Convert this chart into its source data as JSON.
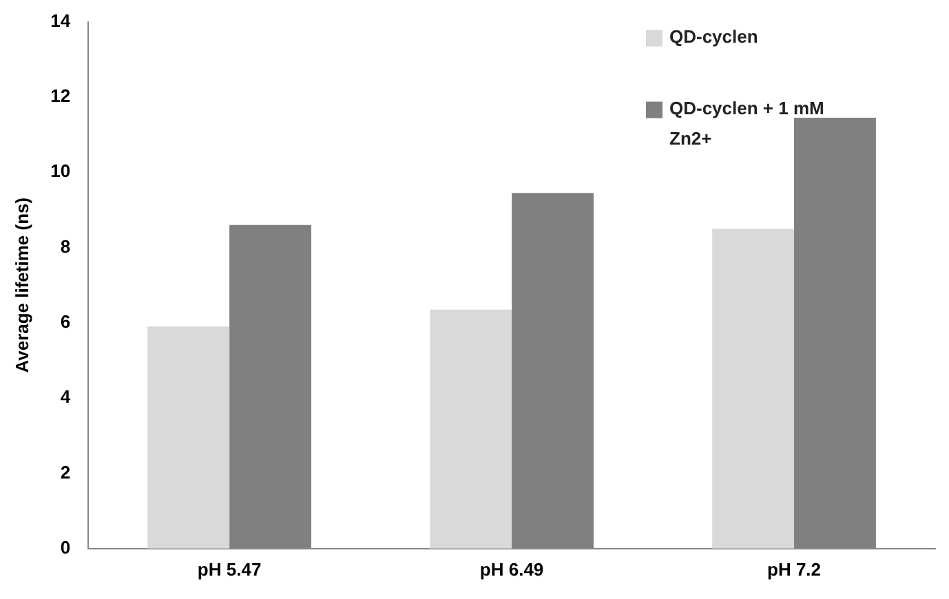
{
  "chart_data": {
    "type": "bar",
    "ylabel": "Average lifetime (ns)",
    "categories": [
      "pH 5.47",
      "pH 6.49",
      "pH 7.2"
    ],
    "series": [
      {
        "name": "QD-cyclen",
        "color": "#d9d9d9",
        "values": [
          5.9,
          6.35,
          8.5
        ]
      },
      {
        "name": "QD-cyclen + 1 mM Zn2+",
        "color": "#808080",
        "values": [
          8.6,
          9.45,
          11.45
        ]
      }
    ],
    "ylim": [
      0,
      14
    ],
    "yticks": [
      0,
      2,
      4,
      6,
      8,
      10,
      12,
      14
    ],
    "grid": false,
    "legend": "top right"
  }
}
